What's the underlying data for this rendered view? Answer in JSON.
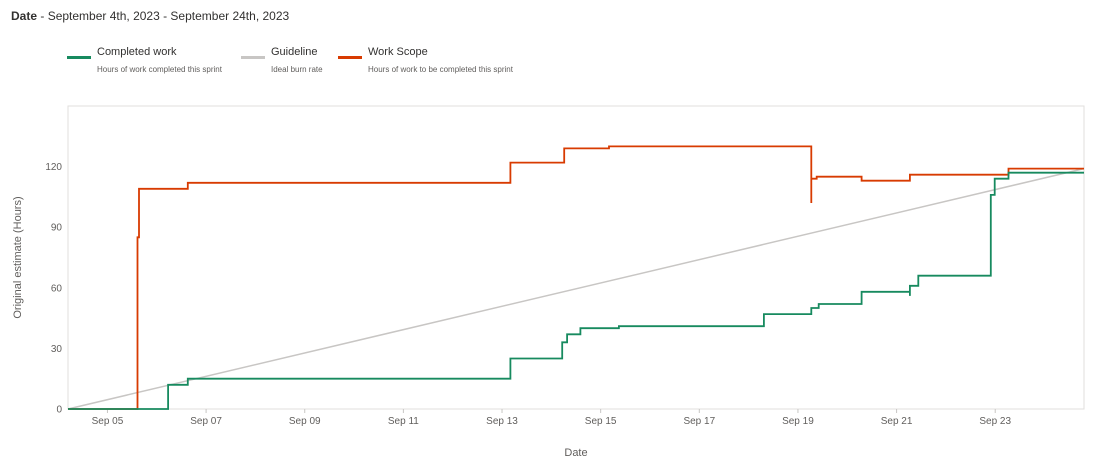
{
  "header": {
    "label": "Date",
    "separator": " - ",
    "range": "September 4th, 2023 - September 24th, 2023"
  },
  "legend": [
    {
      "name": "Completed work",
      "description": "Hours of work completed this sprint",
      "color": "#178a5f"
    },
    {
      "name": "Guideline",
      "description": "Ideal burn rate",
      "color": "#c8c6c4"
    },
    {
      "name": "Work Scope",
      "description": "Hours of work to be completed this sprint",
      "color": "#d83b01"
    }
  ],
  "chart_data": {
    "type": "line",
    "title": "",
    "xlabel": "Date",
    "ylabel": "Original estimate (Hours)",
    "x_unit": "days from Sep 04, 2023",
    "xlim": [
      0.2,
      20.8
    ],
    "ylim": [
      0,
      150
    ],
    "y_ticks": [
      0,
      30,
      60,
      90,
      120
    ],
    "x_ticks": [
      {
        "label": "Sep 05",
        "x": 1
      },
      {
        "label": "Sep 07",
        "x": 3
      },
      {
        "label": "Sep 09",
        "x": 5
      },
      {
        "label": "Sep 11",
        "x": 7
      },
      {
        "label": "Sep 13",
        "x": 9
      },
      {
        "label": "Sep 15",
        "x": 11
      },
      {
        "label": "Sep 17",
        "x": 13
      },
      {
        "label": "Sep 19",
        "x": 15
      },
      {
        "label": "Sep 21",
        "x": 17
      },
      {
        "label": "Sep 23",
        "x": 19
      }
    ],
    "grid": false,
    "series": [
      {
        "name": "Completed work",
        "color": "#178a5f",
        "points": [
          [
            0.2,
            0
          ],
          [
            2.23,
            0
          ],
          [
            2.23,
            12
          ],
          [
            2.63,
            12
          ],
          [
            2.63,
            15
          ],
          [
            9.17,
            15
          ],
          [
            9.17,
            25
          ],
          [
            10.22,
            25
          ],
          [
            10.22,
            33
          ],
          [
            10.32,
            33
          ],
          [
            10.32,
            37
          ],
          [
            10.59,
            37
          ],
          [
            10.59,
            40
          ],
          [
            11.37,
            40
          ],
          [
            11.37,
            41
          ],
          [
            14.31,
            41
          ],
          [
            14.31,
            47
          ],
          [
            15.27,
            47
          ],
          [
            15.27,
            50
          ],
          [
            15.42,
            50
          ],
          [
            15.42,
            52
          ],
          [
            16.29,
            52
          ],
          [
            16.29,
            58
          ],
          [
            17.27,
            58
          ],
          [
            17.27,
            56
          ],
          [
            17.27,
            61
          ],
          [
            17.44,
            61
          ],
          [
            17.44,
            66
          ],
          [
            18.91,
            66
          ],
          [
            18.91,
            106
          ],
          [
            18.99,
            106
          ],
          [
            18.99,
            114
          ],
          [
            19.27,
            114
          ],
          [
            19.27,
            117
          ],
          [
            20.8,
            117
          ]
        ]
      },
      {
        "name": "Guideline",
        "color": "#c8c6c4",
        "points": [
          [
            0.2,
            0
          ],
          [
            20.8,
            119
          ]
        ]
      },
      {
        "name": "Work Scope",
        "color": "#d83b01",
        "points": [
          [
            0.2,
            0
          ],
          [
            1.61,
            0
          ],
          [
            1.61,
            85
          ],
          [
            1.64,
            85
          ],
          [
            1.64,
            109
          ],
          [
            2.63,
            109
          ],
          [
            2.63,
            112
          ],
          [
            9.17,
            112
          ],
          [
            9.17,
            122
          ],
          [
            10.26,
            122
          ],
          [
            10.26,
            129
          ],
          [
            11.17,
            129
          ],
          [
            11.17,
            130
          ],
          [
            15.27,
            130
          ],
          [
            15.27,
            102
          ],
          [
            15.27,
            114
          ],
          [
            15.38,
            114
          ],
          [
            15.38,
            115
          ],
          [
            16.29,
            115
          ],
          [
            16.29,
            113
          ],
          [
            17.27,
            113
          ],
          [
            17.27,
            116
          ],
          [
            19.27,
            116
          ],
          [
            19.27,
            119
          ],
          [
            20.8,
            119
          ]
        ]
      }
    ]
  }
}
